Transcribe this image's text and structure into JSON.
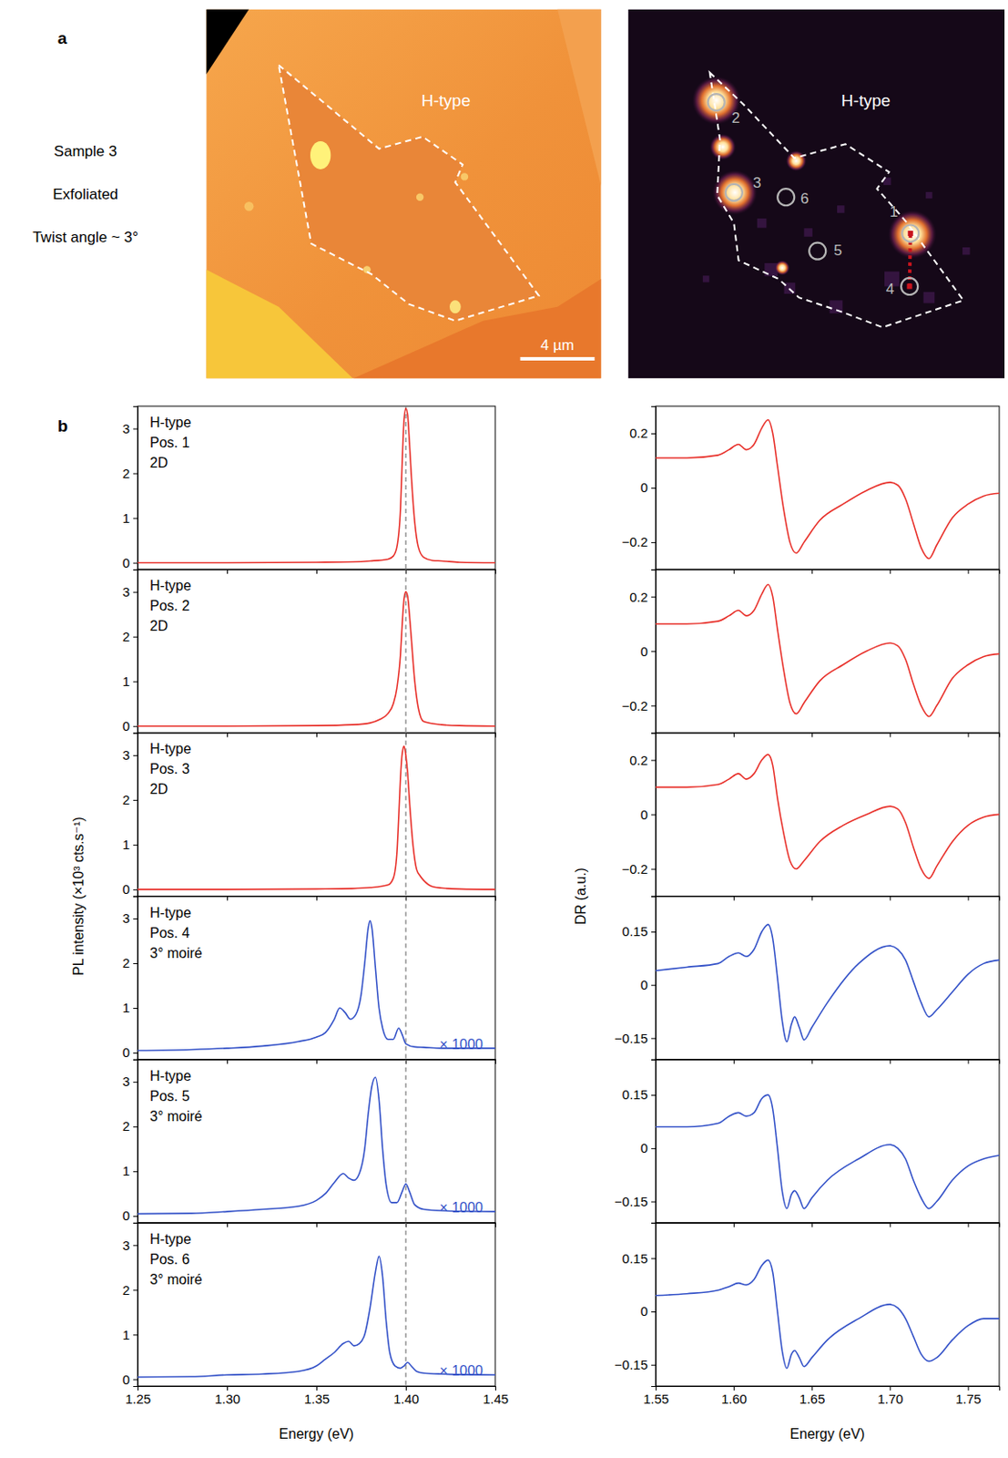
{
  "panel_a": {
    "label": "a",
    "sample_text": [
      "Sample 3",
      "Exfoliated",
      "Twist angle ~ 3°"
    ],
    "optical": {
      "region_label": "H-type",
      "scale_bar": "4 µm"
    },
    "pl_map": {
      "region_label": "H-type",
      "positions": [
        "1",
        "2",
        "3",
        "4",
        "5",
        "6"
      ]
    }
  },
  "panel_b": {
    "label": "b",
    "pl_ylabel": "PL intensity (×10³ cts.s⁻¹)",
    "dr_ylabel": "DR (a.u.)",
    "xlabel": "Energy (eV)"
  },
  "chart_data": [
    {
      "type": "line",
      "annotations": [
        "H-type",
        "Pos. 1",
        "2D"
      ],
      "x": [
        1.25,
        1.3,
        1.35,
        1.37,
        1.38,
        1.39,
        1.393,
        1.395,
        1.397,
        1.398,
        1.399,
        1.4,
        1.401,
        1.402,
        1.403,
        1.405,
        1.407,
        1.41,
        1.415,
        1.42,
        1.43,
        1.45
      ],
      "series": [
        {
          "color": "#e8312b",
          "values": [
            0,
            0,
            0.01,
            0.02,
            0.04,
            0.08,
            0.15,
            0.35,
            1.2,
            2.3,
            3.2,
            3.45,
            3.3,
            2.7,
            2.0,
            0.9,
            0.35,
            0.12,
            0.05,
            0.04,
            0.01,
            0
          ]
        }
      ],
      "xlim": [
        1.25,
        1.45
      ],
      "ylim": [
        -0.15,
        3.5
      ],
      "xticks": [
        1.25,
        {
          "value": 1.3,
          "label": "1.30"
        },
        1.35,
        {
          "value": 1.4,
          "label": "1.40"
        },
        1.45
      ],
      "yticks": [
        0,
        1,
        2,
        3
      ],
      "vline": 1.4,
      "tick_labels": "y"
    },
    {
      "type": "line",
      "annotations": [
        "H-type",
        "Pos. 2",
        "2D"
      ],
      "x": [
        1.25,
        1.3,
        1.35,
        1.37,
        1.38,
        1.385,
        1.39,
        1.393,
        1.395,
        1.397,
        1.398,
        1.399,
        1.4,
        1.401,
        1.402,
        1.403,
        1.405,
        1.407,
        1.41,
        1.42,
        1.43,
        1.45
      ],
      "series": [
        {
          "color": "#e8312b",
          "values": [
            0,
            0,
            0.01,
            0.03,
            0.07,
            0.14,
            0.28,
            0.5,
            0.85,
            1.6,
            2.3,
            2.85,
            3.0,
            2.9,
            2.5,
            2.0,
            1.0,
            0.4,
            0.1,
            0.03,
            0.01,
            0
          ]
        }
      ],
      "xlim": [
        1.25,
        1.45
      ],
      "ylim": [
        -0.15,
        3.5
      ],
      "xticks": [
        1.25,
        {
          "value": 1.3,
          "label": "1.30"
        },
        1.35,
        {
          "value": 1.4,
          "label": "1.40"
        },
        1.45
      ],
      "yticks": [
        0,
        1,
        2,
        3
      ],
      "vline": 1.4,
      "tick_labels": "y"
    },
    {
      "type": "line",
      "annotations": [
        "H-type",
        "Pos. 3",
        "2D"
      ],
      "x": [
        1.25,
        1.3,
        1.35,
        1.37,
        1.38,
        1.39,
        1.393,
        1.395,
        1.396,
        1.397,
        1.398,
        1.399,
        1.4,
        1.401,
        1.402,
        1.404,
        1.406,
        1.408,
        1.41,
        1.415,
        1.42,
        1.43,
        1.45
      ],
      "series": [
        {
          "color": "#e8312b",
          "values": [
            0,
            0,
            0.01,
            0.02,
            0.04,
            0.1,
            0.25,
            0.8,
            1.6,
            2.5,
            3.05,
            3.2,
            3.0,
            2.6,
            2.0,
            1.0,
            0.45,
            0.3,
            0.2,
            0.06,
            0.03,
            0.01,
            0
          ]
        }
      ],
      "xlim": [
        1.25,
        1.45
      ],
      "ylim": [
        -0.15,
        3.5
      ],
      "xticks": [
        1.25,
        {
          "value": 1.3,
          "label": "1.30"
        },
        1.35,
        {
          "value": 1.4,
          "label": "1.40"
        },
        1.45
      ],
      "yticks": [
        0,
        1,
        2,
        3
      ],
      "vline": 1.4,
      "tick_labels": "y"
    },
    {
      "type": "line",
      "annotations": [
        "H-type",
        "Pos. 4",
        "3° moiré"
      ],
      "scale_note": "× 1000",
      "x": [
        1.25,
        1.28,
        1.3,
        1.32,
        1.34,
        1.35,
        1.355,
        1.36,
        1.363,
        1.366,
        1.369,
        1.372,
        1.375,
        1.377,
        1.379,
        1.38,
        1.381,
        1.383,
        1.385,
        1.387,
        1.39,
        1.393,
        1.396,
        1.398,
        1.4,
        1.405,
        1.41,
        1.42,
        1.45
      ],
      "series": [
        {
          "color": "#3452c8",
          "values": [
            0.05,
            0.07,
            0.1,
            0.15,
            0.25,
            0.35,
            0.45,
            0.75,
            1.0,
            0.9,
            0.75,
            0.85,
            1.3,
            2.0,
            2.8,
            2.95,
            2.8,
            1.9,
            1.0,
            0.55,
            0.3,
            0.3,
            0.55,
            0.4,
            0.2,
            0.13,
            0.12,
            0.1,
            0.1
          ]
        }
      ],
      "xlim": [
        1.25,
        1.45
      ],
      "ylim": [
        -0.15,
        3.5
      ],
      "xticks": [
        1.25,
        {
          "value": 1.3,
          "label": "1.30"
        },
        1.35,
        {
          "value": 1.4,
          "label": "1.40"
        },
        1.45
      ],
      "yticks": [
        0,
        1,
        2,
        3
      ],
      "vline": 1.4,
      "tick_labels": "y"
    },
    {
      "type": "line",
      "annotations": [
        "H-type",
        "Pos. 5",
        "3° moiré"
      ],
      "scale_note": "× 1000",
      "x": [
        1.25,
        1.28,
        1.3,
        1.32,
        1.34,
        1.35,
        1.355,
        1.36,
        1.365,
        1.368,
        1.371,
        1.374,
        1.377,
        1.379,
        1.381,
        1.383,
        1.385,
        1.387,
        1.389,
        1.392,
        1.395,
        1.398,
        1.4,
        1.402,
        1.405,
        1.41,
        1.42,
        1.45
      ],
      "series": [
        {
          "color": "#3452c8",
          "values": [
            0.05,
            0.06,
            0.1,
            0.15,
            0.22,
            0.35,
            0.5,
            0.75,
            0.95,
            0.85,
            0.8,
            0.95,
            1.5,
            2.3,
            2.9,
            3.1,
            2.6,
            1.5,
            0.7,
            0.3,
            0.3,
            0.55,
            0.72,
            0.55,
            0.25,
            0.15,
            0.12,
            0.1
          ]
        }
      ],
      "xlim": [
        1.25,
        1.45
      ],
      "ylim": [
        -0.15,
        3.5
      ],
      "xticks": [
        1.25,
        {
          "value": 1.3,
          "label": "1.30"
        },
        1.35,
        {
          "value": 1.4,
          "label": "1.40"
        },
        1.45
      ],
      "yticks": [
        0,
        1,
        2,
        3
      ],
      "vline": 1.4,
      "tick_labels": "y"
    },
    {
      "type": "line",
      "annotations": [
        "H-type",
        "Pos. 6",
        "3° moiré"
      ],
      "scale_note": "× 1000",
      "x": [
        1.25,
        1.28,
        1.3,
        1.32,
        1.34,
        1.35,
        1.355,
        1.36,
        1.365,
        1.368,
        1.371,
        1.374,
        1.377,
        1.38,
        1.383,
        1.385,
        1.387,
        1.389,
        1.391,
        1.394,
        1.397,
        1.399,
        1.401,
        1.403,
        1.406,
        1.41,
        1.42,
        1.45
      ],
      "series": [
        {
          "color": "#3452c8",
          "values": [
            0.05,
            0.06,
            0.1,
            0.12,
            0.18,
            0.3,
            0.45,
            0.6,
            0.8,
            0.85,
            0.75,
            0.8,
            1.0,
            1.6,
            2.4,
            2.75,
            2.3,
            1.3,
            0.6,
            0.3,
            0.25,
            0.3,
            0.38,
            0.3,
            0.18,
            0.14,
            0.12,
            0.1
          ]
        }
      ],
      "xlim": [
        1.25,
        1.45
      ],
      "ylim": [
        -0.15,
        3.5
      ],
      "xticks": [
        1.25,
        {
          "value": 1.3,
          "label": "1.30"
        },
        1.35,
        {
          "value": 1.4,
          "label": "1.40"
        },
        1.45
      ],
      "yticks": [
        0,
        1,
        2,
        3
      ],
      "vline": 1.4
    },
    {
      "type": "line",
      "x": [
        1.55,
        1.57,
        1.59,
        1.597,
        1.603,
        1.608,
        1.613,
        1.618,
        1.622,
        1.625,
        1.628,
        1.632,
        1.636,
        1.64,
        1.645,
        1.655,
        1.67,
        1.685,
        1.7,
        1.705,
        1.71,
        1.715,
        1.72,
        1.725,
        1.73,
        1.74,
        1.75,
        1.76,
        1.77
      ],
      "series": [
        {
          "color": "#e8312b",
          "values": [
            0.11,
            0.11,
            0.12,
            0.14,
            0.16,
            0.14,
            0.16,
            0.22,
            0.25,
            0.2,
            0.08,
            -0.08,
            -0.2,
            -0.24,
            -0.2,
            -0.12,
            -0.06,
            -0.01,
            0.02,
            0.01,
            -0.04,
            -0.13,
            -0.22,
            -0.26,
            -0.21,
            -0.11,
            -0.06,
            -0.03,
            -0.02
          ]
        }
      ],
      "xlim": [
        1.55,
        1.77
      ],
      "ylim": [
        -0.3,
        0.3
      ],
      "xticks": [
        1.55,
        {
          "value": 1.6,
          "label": "1.60"
        },
        1.65,
        {
          "value": 1.7,
          "label": "1.70"
        },
        1.75
      ],
      "yticks": [
        {
          "value": -0.2,
          "label": "−0.2"
        },
        0,
        0.2
      ],
      "tick_labels": "y"
    },
    {
      "type": "line",
      "x": [
        1.55,
        1.57,
        1.59,
        1.597,
        1.603,
        1.608,
        1.613,
        1.618,
        1.622,
        1.625,
        1.628,
        1.632,
        1.636,
        1.64,
        1.645,
        1.655,
        1.67,
        1.685,
        1.7,
        1.705,
        1.71,
        1.715,
        1.72,
        1.725,
        1.73,
        1.74,
        1.75,
        1.76,
        1.77
      ],
      "series": [
        {
          "color": "#e8312b",
          "values": [
            0.1,
            0.1,
            0.11,
            0.13,
            0.15,
            0.13,
            0.15,
            0.21,
            0.245,
            0.2,
            0.08,
            -0.07,
            -0.19,
            -0.23,
            -0.19,
            -0.11,
            -0.05,
            0.0,
            0.03,
            0.02,
            -0.03,
            -0.12,
            -0.2,
            -0.24,
            -0.2,
            -0.1,
            -0.05,
            -0.02,
            -0.01
          ]
        }
      ],
      "xlim": [
        1.55,
        1.77
      ],
      "ylim": [
        -0.3,
        0.3
      ],
      "xticks": [
        1.55,
        {
          "value": 1.6,
          "label": "1.60"
        },
        1.65,
        {
          "value": 1.7,
          "label": "1.70"
        },
        1.75
      ],
      "yticks": [
        {
          "value": -0.2,
          "label": "−0.2"
        },
        0,
        0.2
      ],
      "tick_labels": "y"
    },
    {
      "type": "line",
      "x": [
        1.55,
        1.57,
        1.59,
        1.597,
        1.603,
        1.608,
        1.613,
        1.618,
        1.622,
        1.625,
        1.628,
        1.632,
        1.636,
        1.64,
        1.645,
        1.655,
        1.67,
        1.685,
        1.7,
        1.705,
        1.71,
        1.715,
        1.72,
        1.725,
        1.73,
        1.74,
        1.75,
        1.76,
        1.77
      ],
      "series": [
        {
          "color": "#e8312b",
          "values": [
            0.1,
            0.1,
            0.11,
            0.13,
            0.15,
            0.13,
            0.15,
            0.2,
            0.22,
            0.18,
            0.06,
            -0.07,
            -0.17,
            -0.2,
            -0.17,
            -0.1,
            -0.04,
            0.0,
            0.03,
            0.02,
            -0.03,
            -0.12,
            -0.2,
            -0.235,
            -0.19,
            -0.1,
            -0.04,
            -0.01,
            0.0
          ]
        }
      ],
      "xlim": [
        1.55,
        1.77
      ],
      "ylim": [
        -0.3,
        0.3
      ],
      "xticks": [
        1.55,
        {
          "value": 1.6,
          "label": "1.60"
        },
        1.65,
        {
          "value": 1.7,
          "label": "1.70"
        },
        1.75
      ],
      "yticks": [
        {
          "value": -0.2,
          "label": "−0.2"
        },
        0,
        0.2
      ],
      "tick_labels": "y"
    },
    {
      "type": "line",
      "x": [
        1.55,
        1.57,
        1.59,
        1.597,
        1.603,
        1.608,
        1.613,
        1.618,
        1.622,
        1.625,
        1.628,
        1.631,
        1.634,
        1.637,
        1.639,
        1.642,
        1.645,
        1.65,
        1.66,
        1.68,
        1.7,
        1.705,
        1.71,
        1.715,
        1.72,
        1.725,
        1.73,
        1.74,
        1.75,
        1.76,
        1.77
      ],
      "series": [
        {
          "color": "#3452c8",
          "values": [
            0.04,
            0.05,
            0.06,
            0.08,
            0.09,
            0.08,
            0.1,
            0.15,
            0.17,
            0.13,
            0.02,
            -0.1,
            -0.16,
            -0.11,
            -0.09,
            -0.12,
            -0.155,
            -0.12,
            -0.05,
            0.06,
            0.11,
            0.1,
            0.07,
            0.01,
            -0.05,
            -0.09,
            -0.07,
            -0.02,
            0.03,
            0.06,
            0.07
          ]
        }
      ],
      "xlim": [
        1.55,
        1.77
      ],
      "ylim": [
        -0.21,
        0.25
      ],
      "xticks": [
        1.55,
        {
          "value": 1.6,
          "label": "1.60"
        },
        1.65,
        {
          "value": 1.7,
          "label": "1.70"
        },
        1.75
      ],
      "yticks": [
        {
          "value": -0.15,
          "label": "−0.15"
        },
        0,
        0.15
      ],
      "tick_labels": "y"
    },
    {
      "type": "line",
      "x": [
        1.55,
        1.57,
        1.59,
        1.597,
        1.603,
        1.608,
        1.613,
        1.618,
        1.622,
        1.625,
        1.628,
        1.631,
        1.634,
        1.637,
        1.639,
        1.642,
        1.645,
        1.65,
        1.66,
        1.68,
        1.7,
        1.705,
        1.71,
        1.715,
        1.72,
        1.725,
        1.73,
        1.74,
        1.75,
        1.76,
        1.77
      ],
      "series": [
        {
          "color": "#3452c8",
          "values": [
            0.06,
            0.06,
            0.07,
            0.09,
            0.1,
            0.09,
            0.1,
            0.14,
            0.15,
            0.11,
            0.0,
            -0.12,
            -0.17,
            -0.13,
            -0.12,
            -0.14,
            -0.17,
            -0.14,
            -0.09,
            -0.03,
            0.01,
            0.0,
            -0.03,
            -0.09,
            -0.14,
            -0.17,
            -0.15,
            -0.09,
            -0.05,
            -0.03,
            -0.02
          ]
        }
      ],
      "xlim": [
        1.55,
        1.77
      ],
      "ylim": [
        -0.21,
        0.25
      ],
      "xticks": [
        1.55,
        {
          "value": 1.6,
          "label": "1.60"
        },
        1.65,
        {
          "value": 1.7,
          "label": "1.70"
        },
        1.75
      ],
      "yticks": [
        {
          "value": -0.15,
          "label": "−0.15"
        },
        0,
        0.15
      ],
      "tick_labels": "y"
    },
    {
      "type": "line",
      "x": [
        1.55,
        1.57,
        1.59,
        1.597,
        1.603,
        1.608,
        1.613,
        1.618,
        1.622,
        1.625,
        1.628,
        1.631,
        1.634,
        1.637,
        1.639,
        1.642,
        1.645,
        1.65,
        1.66,
        1.68,
        1.7,
        1.705,
        1.71,
        1.715,
        1.72,
        1.725,
        1.73,
        1.74,
        1.75,
        1.76,
        1.77
      ],
      "series": [
        {
          "color": "#3452c8",
          "values": [
            0.045,
            0.05,
            0.06,
            0.07,
            0.08,
            0.075,
            0.09,
            0.13,
            0.145,
            0.11,
            0.0,
            -0.11,
            -0.16,
            -0.12,
            -0.11,
            -0.13,
            -0.155,
            -0.13,
            -0.08,
            -0.02,
            0.02,
            0.01,
            -0.02,
            -0.07,
            -0.12,
            -0.14,
            -0.13,
            -0.08,
            -0.04,
            -0.02,
            -0.02
          ]
        }
      ],
      "xlim": [
        1.55,
        1.77
      ],
      "ylim": [
        -0.21,
        0.25
      ],
      "xticks": [
        1.55,
        {
          "value": 1.6,
          "label": "1.60"
        },
        1.65,
        {
          "value": 1.7,
          "label": "1.70"
        },
        1.75
      ],
      "yticks": [
        {
          "value": -0.15,
          "label": "−0.15"
        },
        0,
        0.15
      ]
    }
  ]
}
